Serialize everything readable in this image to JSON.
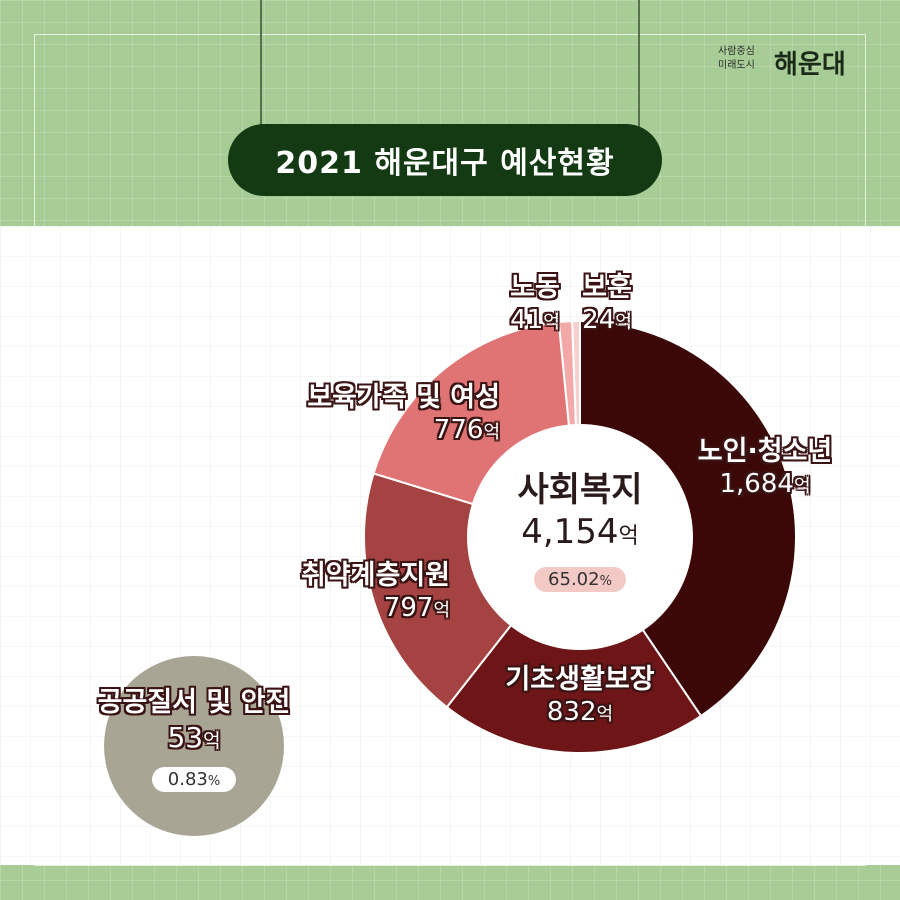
{
  "header": {
    "title": "2021 해운대구 예산현황",
    "logo_tagline_1": "사람중심",
    "logo_tagline_2": "미래도시",
    "logo_name": "해운대"
  },
  "unit": "억",
  "chart_data": {
    "type": "pie",
    "center": {
      "title": "사회복지",
      "value": "4,154",
      "percent": "65.02",
      "percent_sign": "%"
    },
    "categories": [
      "노인·청소년",
      "기초생활보장",
      "취약계층지원",
      "보육가족 및 여성",
      "노동",
      "보훈"
    ],
    "values": [
      1684,
      832,
      797,
      776,
      41,
      24
    ],
    "value_labels": [
      "1,684",
      "832",
      "797",
      "776",
      "41",
      "24"
    ],
    "colors": [
      "#3b0707",
      "#6d1517",
      "#a54342",
      "#e07474",
      "#f2a9a7",
      "#f7cfcd"
    ],
    "separate": {
      "name": "공공질서 및 안전",
      "value": 53,
      "value_label": "53",
      "percent": "0.83",
      "percent_sign": "%",
      "color": "#a9a594"
    }
  }
}
